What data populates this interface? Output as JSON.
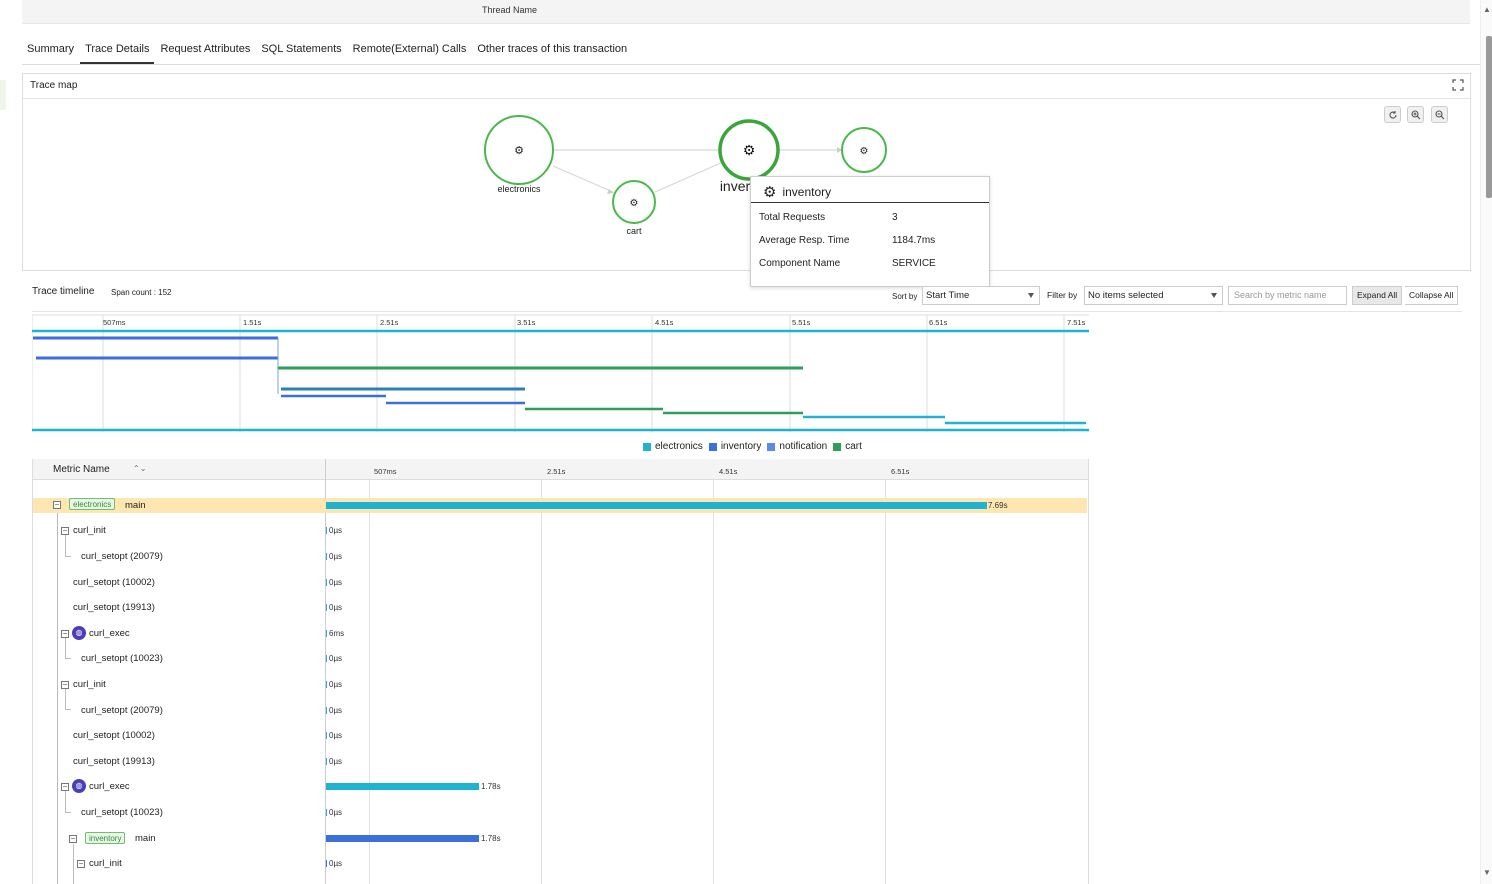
{
  "header": {
    "thread_name_label": "Thread Name"
  },
  "tabs": [
    {
      "label": "Summary"
    },
    {
      "label": "Trace Details"
    },
    {
      "label": "Request Attributes"
    },
    {
      "label": "SQL Statements"
    },
    {
      "label": "Remote(External) Calls"
    },
    {
      "label": "Other traces of this transaction"
    }
  ],
  "active_tab": "Trace Details",
  "trace_map": {
    "title": "Trace map",
    "nodes": [
      {
        "label": "electronics"
      },
      {
        "label": "cart"
      },
      {
        "label": "inver"
      },
      {
        "label": ""
      }
    ],
    "tooltip": {
      "title": "inventory",
      "rows": [
        {
          "label": "Total Requests",
          "value": "3"
        },
        {
          "label": "Average Resp. Time",
          "value": "1184.7ms"
        },
        {
          "label": "Component Name",
          "value": "SERVICE"
        }
      ]
    }
  },
  "timeline": {
    "title": "Trace timeline",
    "span_count": "Span count : 152",
    "sort_label": "Sort by",
    "sort_value": "Start Time",
    "filter_label": "Filter by",
    "filter_value": "No items selected",
    "search_placeholder": "Search by metric name",
    "expand_all": "Expand All",
    "collapse_all": "Collapse All",
    "overview_ticks": [
      "507ms",
      "1.51s",
      "2.51s",
      "3.51s",
      "4.51s",
      "5.51s",
      "6.51s",
      "7.51s"
    ],
    "legend": [
      {
        "name": "electronics",
        "color": "#1fb3d1"
      },
      {
        "name": "inventory",
        "color": "#3b6fd9"
      },
      {
        "name": "notification",
        "color": "#5b8ae8"
      },
      {
        "name": "cart",
        "color": "#2e9e5b"
      }
    ]
  },
  "table": {
    "metric_header": "Metric Name",
    "ticks": [
      "507ms",
      "2.51s",
      "4.51s",
      "6.51s"
    ],
    "rows": [
      {
        "name": "main",
        "tag": "electronics",
        "value": "7.69s"
      },
      {
        "name": "curl_init",
        "value": "0µs"
      },
      {
        "name": "curl_setopt (20079)",
        "value": "0µs"
      },
      {
        "name": "curl_setopt (10002)",
        "value": "0µs"
      },
      {
        "name": "curl_setopt (19913)",
        "value": "0µs"
      },
      {
        "name": "curl_exec",
        "value": "6ms"
      },
      {
        "name": "curl_setopt (10023)",
        "value": "0µs"
      },
      {
        "name": "curl_init",
        "value": "0µs"
      },
      {
        "name": "curl_setopt (20079)",
        "value": "0µs"
      },
      {
        "name": "curl_setopt (10002)",
        "value": "0µs"
      },
      {
        "name": "curl_setopt (19913)",
        "value": "0µs"
      },
      {
        "name": "curl_exec",
        "value": "1.78s"
      },
      {
        "name": "curl_setopt (10023)",
        "value": "0µs"
      },
      {
        "name": "main",
        "tag": "inventory",
        "value": "1.78s"
      },
      {
        "name": "curl_init",
        "value": "0µs"
      }
    ]
  }
}
